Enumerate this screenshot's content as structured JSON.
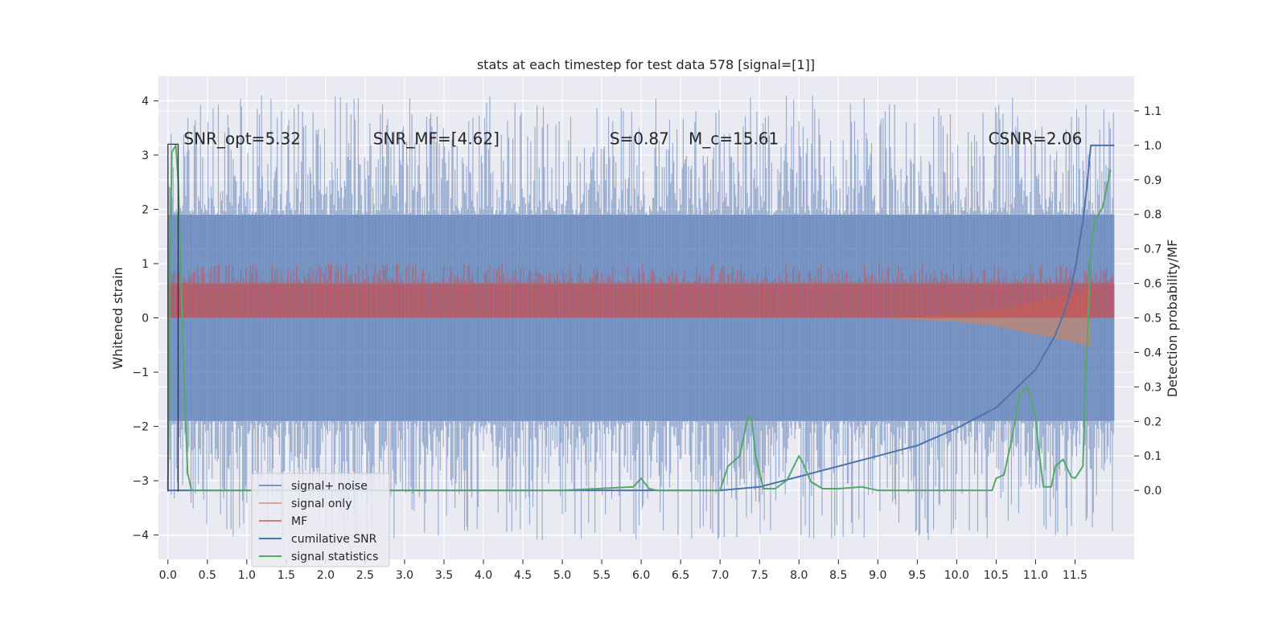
{
  "chart_data": {
    "type": "line",
    "title": "stats at each timestep for test data 578 [signal=[1]]",
    "xlabel": "",
    "ylabel": "Whitened strain",
    "ylabel_right": "Detection probability/MF",
    "xlim": [
      -0.12,
      12.25
    ],
    "ylim": [
      -4.45,
      4.45
    ],
    "ylim_right": [
      -0.2,
      1.2
    ],
    "x_ticks": [
      0.0,
      0.5,
      1.0,
      1.5,
      2.0,
      2.5,
      3.0,
      3.5,
      4.0,
      4.5,
      5.0,
      5.5,
      6.0,
      6.5,
      7.0,
      7.5,
      8.0,
      8.5,
      9.0,
      9.5,
      10.0,
      10.5,
      11.0,
      11.5
    ],
    "x_tick_labels": [
      "0.0",
      "0.5",
      "1.0",
      "1.5",
      "2.0",
      "2.5",
      "3.0",
      "3.5",
      "4.0",
      "4.5",
      "5.0",
      "5.5",
      "6.0",
      "6.5",
      "7.0",
      "7.5",
      "8.0",
      "8.5",
      "9.0",
      "9.5",
      "10.0",
      "10.5",
      "11.0",
      "11.5"
    ],
    "y_ticks": [
      -4,
      -3,
      -2,
      -1,
      0,
      1,
      2,
      3,
      4
    ],
    "y_tick_labels": [
      "−4",
      "−3",
      "−2",
      "−1",
      "0",
      "1",
      "2",
      "3",
      "4"
    ],
    "y_ticks_right": [
      0.0,
      0.1,
      0.2,
      0.3,
      0.4,
      0.5,
      0.6,
      0.7,
      0.8,
      0.9,
      1.0,
      1.1
    ],
    "y_tick_labels_right": [
      "0.0",
      "0.1",
      "0.2",
      "0.3",
      "0.4",
      "0.5",
      "0.6",
      "0.7",
      "0.8",
      "0.9",
      "1.0",
      "1.1"
    ],
    "grid": true,
    "legend_position": "lower-left",
    "annotations": [
      {
        "text": "SNR_opt=5.32",
        "x": 0.2,
        "y": 3.2
      },
      {
        "text": "SNR_MF=[4.62]",
        "x": 2.6,
        "y": 3.2
      },
      {
        "text": "S=0.87",
        "x": 5.6,
        "y": 3.2
      },
      {
        "text": "M_c=15.61",
        "x": 6.6,
        "y": 3.2
      },
      {
        "text": "CSNR=2.06",
        "x": 10.4,
        "y": 3.2
      }
    ],
    "series": [
      {
        "name": "signal+ noise",
        "axis": "left",
        "style": "noise-band",
        "color": "#4c72b0",
        "x_range": [
          0.0,
          12.0
        ],
        "core_band": [
          -1.9,
          1.9
        ],
        "peak_min": -4.1,
        "peak_max": 4.1
      },
      {
        "name": "signal only",
        "axis": "left",
        "style": "chirp",
        "color": "#dd8452",
        "x_range": [
          9.0,
          11.7
        ],
        "envelope": [
          [
            9.0,
            0.0
          ],
          [
            10.0,
            0.07
          ],
          [
            10.5,
            0.15
          ],
          [
            11.0,
            0.3
          ],
          [
            11.5,
            0.45
          ],
          [
            11.7,
            0.55
          ]
        ]
      },
      {
        "name": "MF",
        "axis": "right",
        "style": "noise-band",
        "color": "#c44e52",
        "x_range": [
          0.0,
          12.0
        ],
        "core_band": [
          0.5,
          0.6
        ],
        "peak_min": 0.5,
        "peak_max": 0.66
      },
      {
        "name": "cumilative SNR",
        "axis": "right",
        "color": "#4c72b0",
        "x": [
          0.0,
          1.0,
          2.0,
          3.0,
          4.0,
          5.0,
          6.0,
          7.0,
          7.5,
          8.0,
          8.5,
          9.0,
          9.5,
          10.0,
          10.5,
          11.0,
          11.25,
          11.4,
          11.5,
          11.6,
          11.65,
          11.7,
          12.0
        ],
        "y": [
          0.0,
          0.0,
          0.0,
          0.0,
          0.0,
          0.0,
          0.0,
          0.0,
          0.01,
          0.04,
          0.07,
          0.1,
          0.13,
          0.18,
          0.24,
          0.35,
          0.45,
          0.54,
          0.64,
          0.78,
          0.88,
          1.0,
          1.0
        ]
      },
      {
        "name": "signal statistics",
        "axis": "right",
        "color": "#55a868",
        "x": [
          0.0,
          0.02,
          0.05,
          0.1,
          0.13,
          0.2,
          0.25,
          0.3,
          0.5,
          1.0,
          2.0,
          3.0,
          4.0,
          5.0,
          5.9,
          6.0,
          6.1,
          6.2,
          7.0,
          7.1,
          7.25,
          7.35,
          7.4,
          7.45,
          7.55,
          7.7,
          7.85,
          8.0,
          8.05,
          8.15,
          8.3,
          8.5,
          8.8,
          9.0,
          9.5,
          10.0,
          10.45,
          10.5,
          10.6,
          10.7,
          10.8,
          10.9,
          11.0,
          11.05,
          11.1,
          11.2,
          11.25,
          11.35,
          11.45,
          11.5,
          11.6,
          11.63,
          11.7,
          11.75,
          11.85,
          11.95
        ],
        "y": [
          0.0,
          0.5,
          0.98,
          1.0,
          0.9,
          0.35,
          0.05,
          0.0,
          0.0,
          0.0,
          0.0,
          0.0,
          0.0,
          0.0,
          0.01,
          0.035,
          0.005,
          0.0,
          0.0,
          0.07,
          0.1,
          0.21,
          0.21,
          0.1,
          0.005,
          0.005,
          0.03,
          0.1,
          0.08,
          0.025,
          0.005,
          0.005,
          0.01,
          0.0,
          0.0,
          0.0,
          0.0,
          0.035,
          0.045,
          0.15,
          0.28,
          0.3,
          0.21,
          0.1,
          0.01,
          0.01,
          0.07,
          0.09,
          0.04,
          0.035,
          0.07,
          0.3,
          0.7,
          0.78,
          0.82,
          0.93
        ]
      },
      {
        "name": "",
        "axis": "left",
        "style": "step",
        "color": "#333333",
        "x": [
          0.0,
          0.0,
          0.13,
          0.13
        ],
        "y": [
          -3.2,
          3.2,
          3.2,
          -3.2
        ]
      }
    ]
  }
}
